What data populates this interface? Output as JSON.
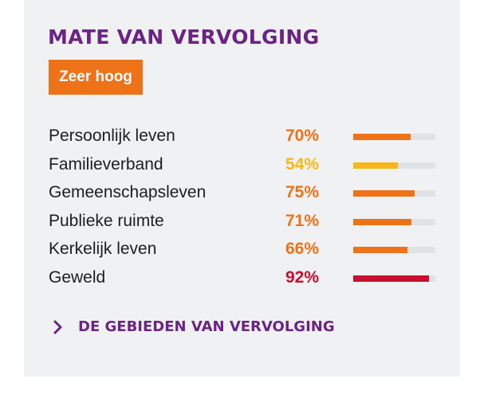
{
  "header": {
    "title": "MATE VAN VERVOLGING",
    "level_label": "Zeer hoog"
  },
  "colors": {
    "purple": "#6b2384",
    "orange": "#ee7218",
    "yellow": "#f6b81b",
    "red": "#c8102e"
  },
  "rows": [
    {
      "label": "Persoonlijk leven",
      "value": "70%",
      "fraction": 0.7,
      "color": "#ee7218"
    },
    {
      "label": "Familieverband",
      "value": "54%",
      "fraction": 0.54,
      "color": "#f6b81b"
    },
    {
      "label": "Gemeenschapsleven",
      "value": "75%",
      "fraction": 0.75,
      "color": "#ee7218"
    },
    {
      "label": "Publieke ruimte",
      "value": "71%",
      "fraction": 0.71,
      "color": "#ee7218"
    },
    {
      "label": "Kerkelijk leven",
      "value": "66%",
      "fraction": 0.66,
      "color": "#ee7218"
    },
    {
      "label": "Geweld",
      "value": "92%",
      "fraction": 0.92,
      "color": "#c8102e"
    }
  ],
  "link": {
    "label": "DE GEBIEDEN VAN VERVOLGING",
    "icon": "chevron-right-icon"
  }
}
